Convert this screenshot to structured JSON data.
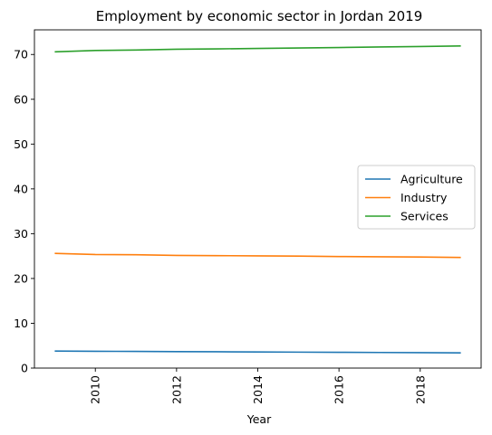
{
  "chart_data": {
    "type": "line",
    "title": "Employment by economic sector in Jordan 2019",
    "xlabel": "Year",
    "ylabel": "",
    "x": [
      2009,
      2010,
      2011,
      2012,
      2013,
      2014,
      2015,
      2016,
      2017,
      2018,
      2019
    ],
    "series": [
      {
        "name": "Agriculture",
        "color": "#1f77b4",
        "values": [
          3.8,
          3.75,
          3.72,
          3.68,
          3.64,
          3.6,
          3.56,
          3.52,
          3.48,
          3.44,
          3.4
        ]
      },
      {
        "name": "Industry",
        "color": "#ff7f0e",
        "values": [
          25.6,
          25.35,
          25.3,
          25.15,
          25.1,
          25.05,
          25.0,
          24.9,
          24.85,
          24.8,
          24.7
        ]
      },
      {
        "name": "Services",
        "color": "#2ca02c",
        "values": [
          70.6,
          70.9,
          71.0,
          71.17,
          71.25,
          71.35,
          71.45,
          71.55,
          71.67,
          71.77,
          71.9
        ]
      }
    ],
    "xticks": [
      2010,
      2012,
      2014,
      2016,
      2018
    ],
    "yticks": [
      0,
      10,
      20,
      30,
      40,
      50,
      60,
      70
    ],
    "xlim": [
      2008.5,
      2019.5
    ],
    "ylim": [
      0,
      75.5
    ],
    "grid": false,
    "legend_position": "center-right"
  }
}
